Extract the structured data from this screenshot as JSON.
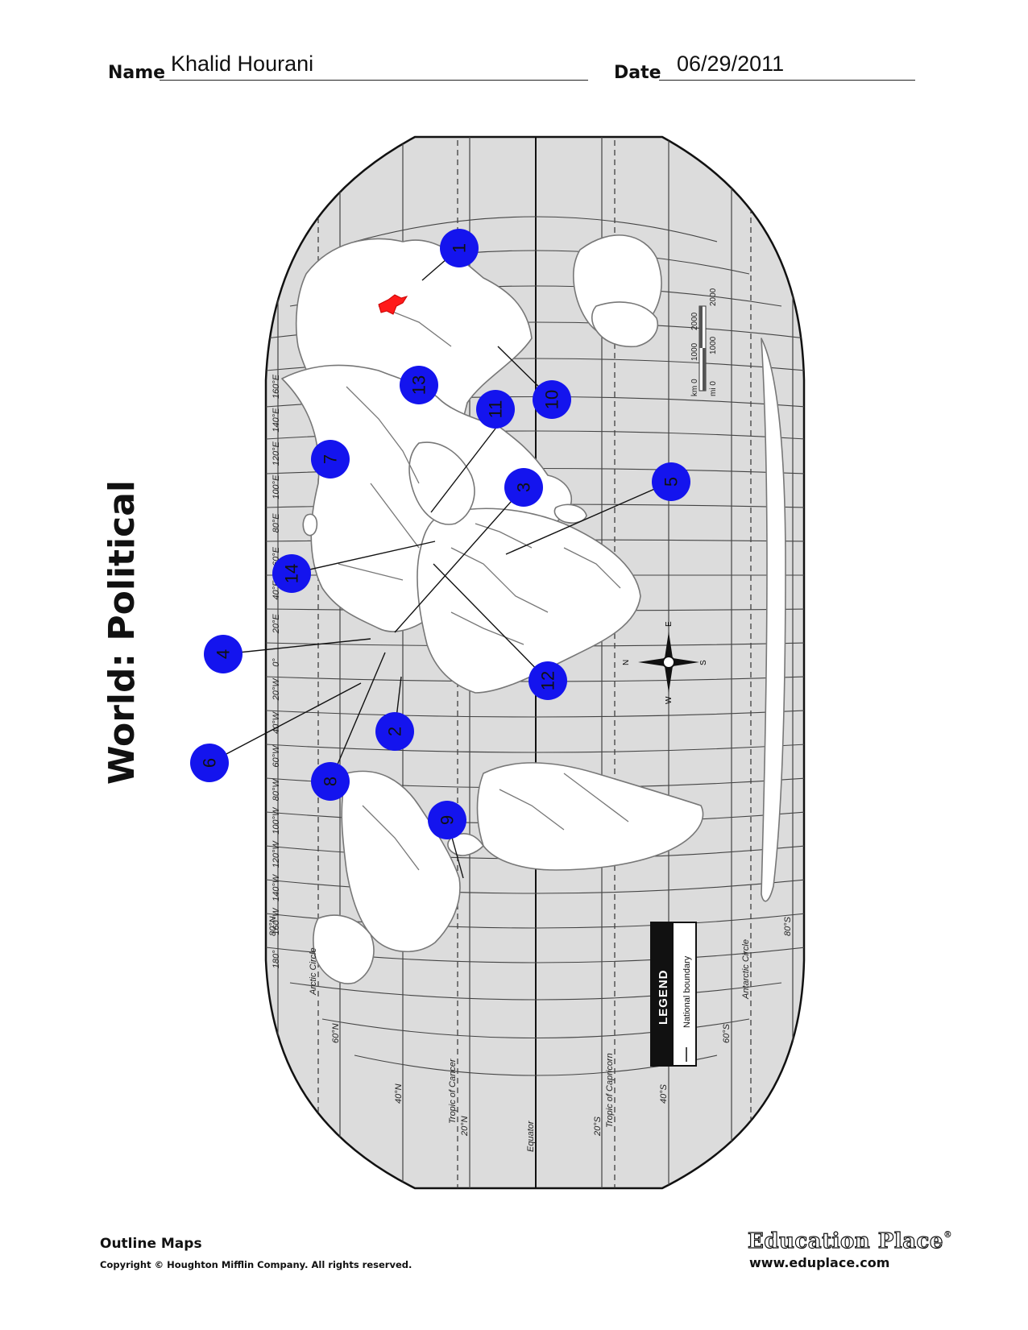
{
  "header": {
    "name_label": "Name",
    "name_value": "Khalid Hourani",
    "date_label": "Date",
    "date_value": "06/29/2011"
  },
  "title": "World: Political",
  "map": {
    "ocean_color": "#dcdcdc",
    "land_color": "#ffffff",
    "border_color": "#777777",
    "highlight_color": "#ff1a1a",
    "marker_color": "#1414ee",
    "markers": [
      {
        "label": "1"
      },
      {
        "label": "2"
      },
      {
        "label": "3"
      },
      {
        "label": "4"
      },
      {
        "label": "5"
      },
      {
        "label": "6"
      },
      {
        "label": "7"
      },
      {
        "label": "8"
      },
      {
        "label": "9"
      },
      {
        "label": "10"
      },
      {
        "label": "11"
      },
      {
        "label": "12"
      },
      {
        "label": "13"
      },
      {
        "label": "14"
      }
    ],
    "longitude_labels": [
      "160°E",
      "140°E",
      "120°E",
      "100°E",
      "80°E",
      "60°E",
      "40°E",
      "20°E",
      "0°",
      "20°W",
      "40°W",
      "60°W",
      "80°W",
      "100°W",
      "120°W",
      "140°W",
      "160°W",
      "180°"
    ],
    "latitude_labels": {
      "n80": "80°N",
      "n60": "60°N",
      "n40": "40°N",
      "n20": "20°N",
      "s20": "20°S",
      "s40": "40°S",
      "s60": "60°S",
      "s80": "80°S"
    },
    "circle_labels": {
      "arctic": "Arctic Circle",
      "cancer": "Tropic of Cancer",
      "equator": "Equator",
      "capricorn": "Tropic of Capricorn",
      "antarctic": "Antarctic Circle"
    },
    "scale": {
      "km_label": "km 0",
      "mi_label": "mi 0",
      "km_ticks": [
        "1000",
        "2000"
      ],
      "mi_ticks": [
        "1000",
        "2000"
      ]
    },
    "compass": {
      "n": "N",
      "e": "E",
      "s": "S",
      "w": "W"
    },
    "legend": {
      "title": "LEGEND",
      "item": "National boundary"
    }
  },
  "footer": {
    "title": "Outline Maps",
    "copyright": "Copyright © Houghton Mifflin Company. All rights reserved.",
    "brand": "Education Place",
    "brand_mark": "®",
    "url": "www.eduplace.com"
  }
}
